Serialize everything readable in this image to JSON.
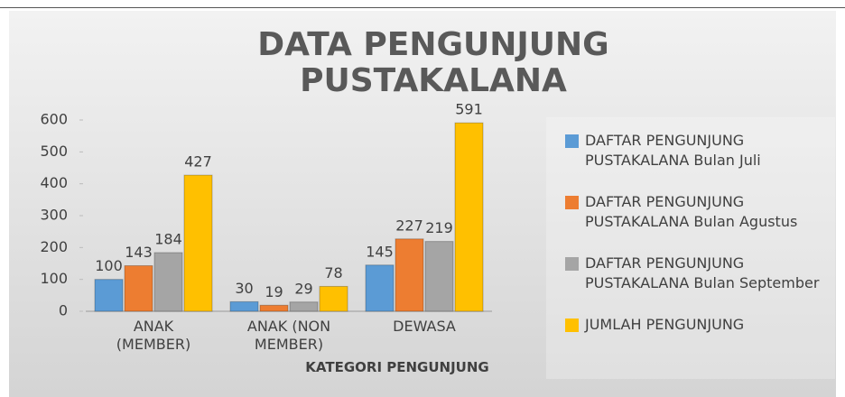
{
  "chart_data": {
    "type": "bar",
    "title": "DATA PENGUNJUNG PUSTAKALANA",
    "xlabel": "KATEGORI PENGUNJUNG",
    "categories": [
      "ANAK (MEMBER)",
      "ANAK (NON MEMBER)",
      "DEWASA"
    ],
    "series": [
      {
        "name": "DAFTAR PENGUNJUNG PUSTAKALANA Bulan Juli",
        "color": "#5b9bd5",
        "values": [
          100,
          30,
          145
        ]
      },
      {
        "name": "DAFTAR PENGUNJUNG PUSTAKALANA Bulan Agustus",
        "color": "#ed7d31",
        "values": [
          143,
          19,
          227
        ]
      },
      {
        "name": "DAFTAR PENGUNJUNG PUSTAKALANA Bulan September",
        "color": "#a5a5a5",
        "values": [
          184,
          29,
          219
        ]
      },
      {
        "name": "JUMLAH PENGUNJUNG",
        "color": "#ffc000",
        "values": [
          427,
          78,
          591
        ]
      }
    ],
    "ylim": [
      0,
      600
    ],
    "yticks": [
      0,
      100,
      200,
      300,
      400,
      500,
      600
    ],
    "legend": "right"
  }
}
